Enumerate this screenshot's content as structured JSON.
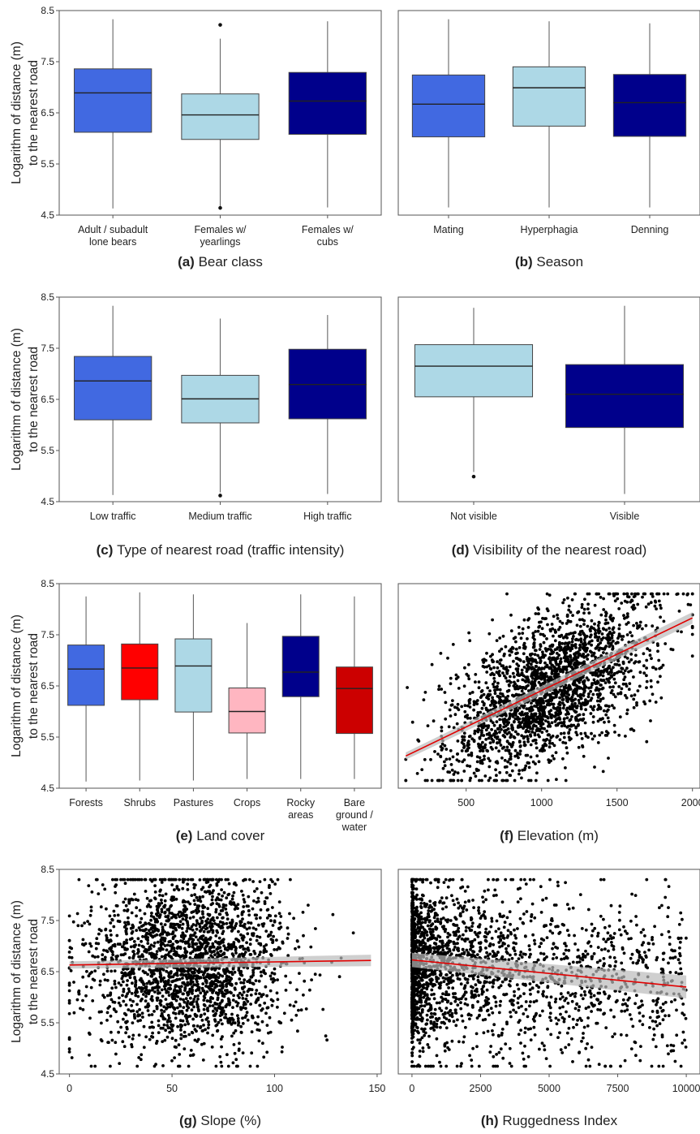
{
  "figure": {
    "ylabel_line1": "Logarithm of distance (m)",
    "ylabel_line2": "to the nearest road"
  },
  "chart_data": [
    {
      "id": "a",
      "type": "boxplot",
      "panel_letter": "(a)",
      "caption": "Bear class",
      "ylim": [
        4.5,
        8.5
      ],
      "yticks": [
        "4.5",
        "5.5",
        "6.5",
        "7.5",
        "8.5"
      ],
      "categories": [
        [
          "Adult / subadult",
          "lone bears"
        ],
        [
          "Females w/",
          "yearlings"
        ],
        [
          "Females w/",
          "cubs"
        ]
      ],
      "boxes": [
        {
          "min": 4.63,
          "q1": 6.12,
          "median": 6.89,
          "q3": 7.36,
          "max": 8.33,
          "color": "#4169E1",
          "outliers": []
        },
        {
          "min": 4.67,
          "q1": 5.98,
          "median": 6.46,
          "q3": 6.87,
          "max": 7.95,
          "color": "#ADD8E6",
          "outliers": [
            8.22,
            4.64
          ]
        },
        {
          "min": 4.65,
          "q1": 6.08,
          "median": 6.73,
          "q3": 7.29,
          "max": 8.29,
          "color": "#00008B",
          "outliers": []
        }
      ]
    },
    {
      "id": "b",
      "type": "boxplot",
      "panel_letter": "(b)",
      "caption": "Season",
      "ylim": [
        4.5,
        8.5
      ],
      "yticks": [],
      "categories": [
        [
          "Mating"
        ],
        [
          "Hyperphagia"
        ],
        [
          "Denning"
        ]
      ],
      "boxes": [
        {
          "min": 4.65,
          "q1": 6.03,
          "median": 6.67,
          "q3": 7.24,
          "max": 8.33,
          "color": "#4169E1",
          "outliers": []
        },
        {
          "min": 4.65,
          "q1": 6.24,
          "median": 6.99,
          "q3": 7.4,
          "max": 8.29,
          "color": "#ADD8E6",
          "outliers": []
        },
        {
          "min": 4.65,
          "q1": 6.04,
          "median": 6.7,
          "q3": 7.25,
          "max": 8.25,
          "color": "#00008B",
          "outliers": []
        }
      ]
    },
    {
      "id": "c",
      "type": "boxplot",
      "panel_letter": "(c)",
      "caption": "Type of nearest road (traffic intensity)",
      "ylim": [
        4.5,
        8.5
      ],
      "yticks": [
        "4.5",
        "5.5",
        "6.5",
        "7.5",
        "8.5"
      ],
      "categories": [
        [
          "Low traffic"
        ],
        [
          "Medium traffic"
        ],
        [
          "High traffic"
        ]
      ],
      "boxes": [
        {
          "min": 4.63,
          "q1": 6.1,
          "median": 6.86,
          "q3": 7.34,
          "max": 8.33,
          "color": "#4169E1",
          "outliers": []
        },
        {
          "min": 4.68,
          "q1": 6.04,
          "median": 6.51,
          "q3": 6.97,
          "max": 8.08,
          "color": "#ADD8E6",
          "outliers": [
            4.62
          ]
        },
        {
          "min": 4.65,
          "q1": 6.12,
          "median": 6.79,
          "q3": 7.48,
          "max": 8.15,
          "color": "#00008B",
          "outliers": []
        }
      ]
    },
    {
      "id": "d",
      "type": "boxplot",
      "panel_letter": "(d)",
      "caption": "Visibility of the nearest road)",
      "ylim": [
        4.5,
        8.5
      ],
      "yticks": [],
      "categories": [
        [
          "Not visible"
        ],
        [
          "Visible"
        ]
      ],
      "boxes": [
        {
          "min": 5.08,
          "q1": 6.55,
          "median": 7.15,
          "q3": 7.57,
          "max": 8.29,
          "color": "#ADD8E6",
          "outliers": [
            4.99
          ]
        },
        {
          "min": 4.65,
          "q1": 5.95,
          "median": 6.6,
          "q3": 7.18,
          "max": 8.33,
          "color": "#00008B",
          "outliers": []
        }
      ]
    },
    {
      "id": "e",
      "type": "boxplot",
      "panel_letter": "(e)",
      "caption": "Land cover",
      "ylim": [
        4.5,
        8.5
      ],
      "yticks": [
        "4.5",
        "5.5",
        "6.5",
        "7.5",
        "8.5"
      ],
      "categories": [
        [
          "Forests"
        ],
        [
          "Shrubs"
        ],
        [
          "Pastures"
        ],
        [
          "Crops"
        ],
        [
          "Rocky",
          "areas"
        ],
        [
          "Bare",
          "ground /",
          "water"
        ]
      ],
      "boxes": [
        {
          "min": 4.63,
          "q1": 6.12,
          "median": 6.83,
          "q3": 7.3,
          "max": 8.25,
          "color": "#4169E1",
          "outliers": []
        },
        {
          "min": 4.65,
          "q1": 6.23,
          "median": 6.85,
          "q3": 7.32,
          "max": 8.33,
          "color": "#FF0000",
          "outliers": []
        },
        {
          "min": 4.65,
          "q1": 5.99,
          "median": 6.89,
          "q3": 7.42,
          "max": 8.29,
          "color": "#ADD8E6",
          "outliers": []
        },
        {
          "min": 4.68,
          "q1": 5.58,
          "median": 6.0,
          "q3": 6.46,
          "max": 7.73,
          "color": "#FFB6C1",
          "outliers": []
        },
        {
          "min": 4.68,
          "q1": 6.29,
          "median": 6.77,
          "q3": 7.47,
          "max": 8.29,
          "color": "#00008B",
          "outliers": []
        },
        {
          "min": 4.68,
          "q1": 5.57,
          "median": 6.45,
          "q3": 6.87,
          "max": 8.25,
          "color": "#CC0000",
          "outliers": []
        }
      ]
    },
    {
      "id": "f",
      "type": "scatter",
      "panel_letter": "(f)",
      "caption": "Elevation (m)",
      "xlim": [
        50,
        2050
      ],
      "ylim": [
        4.5,
        8.5
      ],
      "xticks": [
        {
          "v": 500,
          "label": "500"
        },
        {
          "v": 1000,
          "label": "1000"
        },
        {
          "v": 1500,
          "label": "1500"
        },
        {
          "v": 2000,
          "label": "2000"
        }
      ],
      "yticks": [],
      "n_points": 2300,
      "x_range": [
        100,
        2000
      ],
      "y_range": [
        4.65,
        8.3
      ],
      "fit": {
        "x": [
          100,
          2000
        ],
        "y": [
          5.13,
          7.83
        ],
        "color": "#E00000"
      }
    },
    {
      "id": "g",
      "type": "scatter",
      "panel_letter": "(g)",
      "caption": "Slope (%)",
      "xlim": [
        -5,
        152
      ],
      "ylim": [
        4.5,
        8.5
      ],
      "xticks": [
        {
          "v": 0,
          "label": "0"
        },
        {
          "v": 50,
          "label": "50"
        },
        {
          "v": 100,
          "label": "100"
        },
        {
          "v": 150,
          "label": "150"
        }
      ],
      "yticks": [
        "4.5",
        "5.5",
        "6.5",
        "7.5",
        "8.5"
      ],
      "n_points": 2300,
      "x_range": [
        0,
        147
      ],
      "y_range": [
        4.65,
        8.3
      ],
      "fit": {
        "x": [
          0,
          147
        ],
        "y": [
          6.63,
          6.72
        ],
        "color": "#E00000"
      }
    },
    {
      "id": "h",
      "type": "scatter",
      "panel_letter": "(h)",
      "caption": "Ruggedness Index",
      "xlim": [
        -500,
        10500
      ],
      "ylim": [
        4.5,
        8.5
      ],
      "xticks": [
        {
          "v": 0,
          "label": "0"
        },
        {
          "v": 2500,
          "label": "2500"
        },
        {
          "v": 5000,
          "label": "5000"
        },
        {
          "v": 7500,
          "label": "7500"
        },
        {
          "v": 10000,
          "label": "10000"
        }
      ],
      "yticks": [],
      "n_points": 2300,
      "x_range": [
        0,
        10000
      ],
      "y_range": [
        4.65,
        8.3
      ],
      "fit": {
        "x": [
          0,
          10000
        ],
        "y": [
          6.73,
          6.2
        ],
        "color": "#E00000"
      }
    }
  ]
}
